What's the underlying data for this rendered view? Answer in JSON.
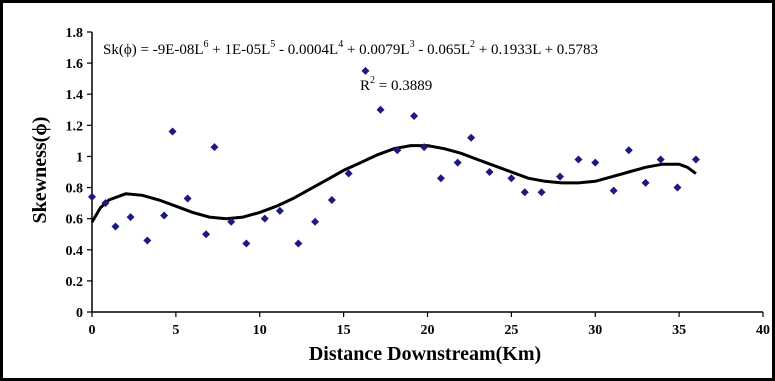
{
  "chart_data": {
    "type": "scatter",
    "xlabel": "Distance  Downstream(Km)",
    "ylabel": "Skewness(ϕ)",
    "xlim": [
      0,
      40
    ],
    "ylim": [
      0,
      1.8
    ],
    "x_ticks": [
      "0",
      "5",
      "10",
      "15",
      "20",
      "25",
      "30",
      "35",
      "40"
    ],
    "y_ticks": [
      "0",
      "0.2",
      "0.4",
      "0.6",
      "0.8",
      "1",
      "1.2",
      "1.4",
      "1.6",
      "1.8"
    ],
    "grid": false,
    "point_color": "#1a1a80",
    "curve_color": "#000000",
    "series": [
      {
        "marker": "diamond",
        "points": [
          [
            0.0,
            0.74
          ],
          [
            0.8,
            0.7
          ],
          [
            1.4,
            0.55
          ],
          [
            2.3,
            0.61
          ],
          [
            3.3,
            0.46
          ],
          [
            4.3,
            0.62
          ],
          [
            4.8,
            1.16
          ],
          [
            5.7,
            0.73
          ],
          [
            6.8,
            0.5
          ],
          [
            7.3,
            1.06
          ],
          [
            8.3,
            0.58
          ],
          [
            9.2,
            0.44
          ],
          [
            10.3,
            0.6
          ],
          [
            11.2,
            0.65
          ],
          [
            12.3,
            0.44
          ],
          [
            13.3,
            0.58
          ],
          [
            14.3,
            0.72
          ],
          [
            15.3,
            0.89
          ],
          [
            16.3,
            1.55
          ],
          [
            17.2,
            1.3
          ],
          [
            18.2,
            1.04
          ],
          [
            19.2,
            1.26
          ],
          [
            19.8,
            1.06
          ],
          [
            20.8,
            0.86
          ],
          [
            21.8,
            0.96
          ],
          [
            22.6,
            1.12
          ],
          [
            23.7,
            0.9
          ],
          [
            25.0,
            0.86
          ],
          [
            25.8,
            0.77
          ],
          [
            26.8,
            0.77
          ],
          [
            27.9,
            0.87
          ],
          [
            29.0,
            0.98
          ],
          [
            30.0,
            0.96
          ],
          [
            31.1,
            0.78
          ],
          [
            32.0,
            1.04
          ],
          [
            33.0,
            0.83
          ],
          [
            33.9,
            0.98
          ],
          [
            34.9,
            0.8
          ],
          [
            36.0,
            0.98
          ]
        ]
      },
      {
        "type": "line",
        "curve": [
          [
            0,
            0.578
          ],
          [
            0.5,
            0.67
          ],
          [
            1,
            0.72
          ],
          [
            2,
            0.76
          ],
          [
            3,
            0.75
          ],
          [
            4,
            0.72
          ],
          [
            5,
            0.68
          ],
          [
            6,
            0.64
          ],
          [
            7,
            0.61
          ],
          [
            8,
            0.6
          ],
          [
            9,
            0.61
          ],
          [
            10,
            0.64
          ],
          [
            11,
            0.68
          ],
          [
            12,
            0.73
          ],
          [
            13,
            0.79
          ],
          [
            14,
            0.85
          ],
          [
            15,
            0.91
          ],
          [
            16,
            0.96
          ],
          [
            17,
            1.01
          ],
          [
            18,
            1.05
          ],
          [
            19,
            1.07
          ],
          [
            20,
            1.07
          ],
          [
            21,
            1.05
          ],
          [
            22,
            1.02
          ],
          [
            23,
            0.98
          ],
          [
            24,
            0.94
          ],
          [
            25,
            0.9
          ],
          [
            26,
            0.86
          ],
          [
            27,
            0.84
          ],
          [
            28,
            0.83
          ],
          [
            29,
            0.83
          ],
          [
            30,
            0.84
          ],
          [
            31,
            0.87
          ],
          [
            32,
            0.9
          ],
          [
            33,
            0.93
          ],
          [
            34,
            0.95
          ],
          [
            35,
            0.95
          ],
          [
            35.5,
            0.93
          ],
          [
            36,
            0.89
          ]
        ]
      }
    ],
    "annotations": {
      "equation_lhs": "Sk(ϕ)",
      "equation_rhs": [
        {
          "t": " = -9E-08L"
        },
        {
          "sup": "6"
        },
        {
          "t": " + 1E-05L"
        },
        {
          "sup": "5"
        },
        {
          "t": " - 0.0004L"
        },
        {
          "sup": "4"
        },
        {
          "t": " + 0.0079L"
        },
        {
          "sup": "3"
        },
        {
          "t": " - 0.065L"
        },
        {
          "sup": "2"
        },
        {
          "t": " + 0.1933L + 0.5783"
        }
      ],
      "r2_label": "R",
      "r2_sup": "2",
      "r2_value": " = 0.3889"
    }
  }
}
